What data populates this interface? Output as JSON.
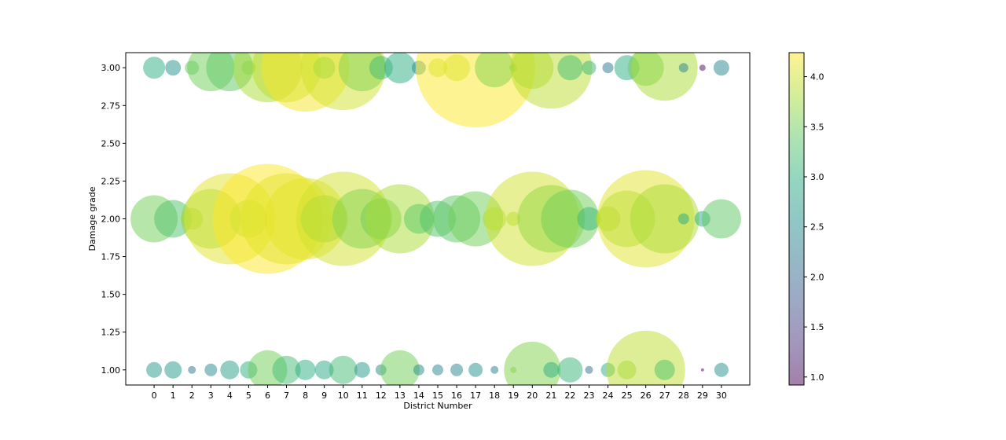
{
  "chart_data": {
    "type": "scatter",
    "variant": "bubble",
    "title": "",
    "xlabel": "District Number",
    "ylabel": "Damage grade",
    "x_ticks": [
      0,
      1,
      2,
      3,
      4,
      5,
      6,
      7,
      8,
      9,
      10,
      11,
      12,
      13,
      14,
      15,
      16,
      17,
      18,
      19,
      20,
      21,
      22,
      23,
      24,
      25,
      26,
      27,
      28,
      29,
      30
    ],
    "y_ticks": [
      "1.00",
      "1.25",
      "1.50",
      "1.75",
      "2.00",
      "2.25",
      "2.50",
      "2.75",
      "3.00"
    ],
    "xlim": [
      -1.5,
      31.5
    ],
    "ylim": [
      0.9,
      3.1
    ],
    "colorbar": {
      "colormap": "viridis",
      "alpha": 0.5,
      "range": [
        0.92,
        4.24
      ],
      "ticks": [
        "1.0",
        "1.5",
        "2.0",
        "2.5",
        "3.0",
        "3.5",
        "4.0"
      ],
      "tick_values": [
        1.0,
        1.5,
        2.0,
        2.5,
        3.0,
        3.5,
        4.0
      ]
    },
    "grid": false,
    "series": [
      {
        "y": 3,
        "points": [
          {
            "x": 0,
            "size": 14,
            "color_value": 3.0
          },
          {
            "x": 1,
            "size": 10,
            "color_value": 2.6
          },
          {
            "x": 2,
            "size": 9,
            "color_value": 3.4
          },
          {
            "x": 3,
            "size": 30,
            "color_value": 3.5
          },
          {
            "x": 4,
            "size": 30,
            "color_value": 3.4
          },
          {
            "x": 5,
            "size": 9,
            "color_value": 3.5
          },
          {
            "x": 6,
            "size": 44,
            "color_value": 3.8
          },
          {
            "x": 7,
            "size": 44,
            "color_value": 3.9
          },
          {
            "x": 8,
            "size": 56,
            "color_value": 4.2
          },
          {
            "x": 9,
            "size": 14,
            "color_value": 3.6
          },
          {
            "x": 10,
            "size": 54,
            "color_value": 4.0
          },
          {
            "x": 11,
            "size": 30,
            "color_value": 3.6
          },
          {
            "x": 12,
            "size": 15,
            "color_value": 3.2
          },
          {
            "x": 13,
            "size": 20,
            "color_value": 3.0
          },
          {
            "x": 14,
            "size": 9,
            "color_value": 2.5
          },
          {
            "x": 15,
            "size": 12,
            "color_value": 3.9
          },
          {
            "x": 16,
            "size": 17,
            "color_value": 3.9
          },
          {
            "x": 17,
            "size": 76,
            "color_value": 4.25
          },
          {
            "x": 18,
            "size": 25,
            "color_value": 3.6
          },
          {
            "x": 19,
            "size": 5,
            "color_value": 3.6
          },
          {
            "x": 20,
            "size": 27,
            "color_value": 3.8
          },
          {
            "x": 21,
            "size": 52,
            "color_value": 3.9
          },
          {
            "x": 22,
            "size": 16,
            "color_value": 3.2
          },
          {
            "x": 23,
            "size": 9,
            "color_value": 3.1
          },
          {
            "x": 24,
            "size": 7,
            "color_value": 2.2
          },
          {
            "x": 25,
            "size": 16,
            "color_value": 3.0
          },
          {
            "x": 26,
            "size": 23,
            "color_value": 3.5
          },
          {
            "x": 27,
            "size": 42,
            "color_value": 3.8
          },
          {
            "x": 28,
            "size": 6,
            "color_value": 2.4
          },
          {
            "x": 29,
            "size": 4,
            "color_value": 1.0
          },
          {
            "x": 30,
            "size": 10,
            "color_value": 2.4
          }
        ]
      },
      {
        "y": 2,
        "points": [
          {
            "x": 0,
            "size": 30,
            "color_value": 3.5
          },
          {
            "x": 1,
            "size": 24,
            "color_value": 3.3
          },
          {
            "x": 2,
            "size": 14,
            "color_value": 3.8
          },
          {
            "x": 3,
            "size": 38,
            "color_value": 3.7
          },
          {
            "x": 4,
            "size": 58,
            "color_value": 4.1
          },
          {
            "x": 5,
            "size": 24,
            "color_value": 3.8
          },
          {
            "x": 6,
            "size": 70,
            "color_value": 4.25
          },
          {
            "x": 7,
            "size": 58,
            "color_value": 4.1
          },
          {
            "x": 8,
            "size": 52,
            "color_value": 4.1
          },
          {
            "x": 9,
            "size": 30,
            "color_value": 3.7
          },
          {
            "x": 10,
            "size": 60,
            "color_value": 4.0
          },
          {
            "x": 11,
            "size": 38,
            "color_value": 3.6
          },
          {
            "x": 12,
            "size": 26,
            "color_value": 3.5
          },
          {
            "x": 13,
            "size": 44,
            "color_value": 3.8
          },
          {
            "x": 14,
            "size": 19,
            "color_value": 3.4
          },
          {
            "x": 15,
            "size": 23,
            "color_value": 3.3
          },
          {
            "x": 16,
            "size": 30,
            "color_value": 3.4
          },
          {
            "x": 17,
            "size": 35,
            "color_value": 3.5
          },
          {
            "x": 18,
            "size": 15,
            "color_value": 3.8
          },
          {
            "x": 19,
            "size": 9,
            "color_value": 3.8
          },
          {
            "x": 20,
            "size": 60,
            "color_value": 4.0
          },
          {
            "x": 21,
            "size": 43,
            "color_value": 3.7
          },
          {
            "x": 22,
            "size": 37,
            "color_value": 3.5
          },
          {
            "x": 23,
            "size": 15,
            "color_value": 3.1
          },
          {
            "x": 24,
            "size": 16,
            "color_value": 3.8
          },
          {
            "x": 25,
            "size": 36,
            "color_value": 3.7
          },
          {
            "x": 26,
            "size": 62,
            "color_value": 4.1
          },
          {
            "x": 27,
            "size": 44,
            "color_value": 3.8
          },
          {
            "x": 28,
            "size": 7,
            "color_value": 2.9
          },
          {
            "x": 29,
            "size": 10,
            "color_value": 3.0
          },
          {
            "x": 30,
            "size": 25,
            "color_value": 3.4
          }
        ]
      },
      {
        "y": 1,
        "points": [
          {
            "x": 0,
            "size": 10,
            "color_value": 2.7
          },
          {
            "x": 1,
            "size": 11,
            "color_value": 2.7
          },
          {
            "x": 2,
            "size": 5,
            "color_value": 2.2
          },
          {
            "x": 3,
            "size": 8,
            "color_value": 2.5
          },
          {
            "x": 4,
            "size": 12,
            "color_value": 2.8
          },
          {
            "x": 5,
            "size": 11,
            "color_value": 3.0
          },
          {
            "x": 6,
            "size": 25,
            "color_value": 3.5
          },
          {
            "x": 7,
            "size": 18,
            "color_value": 3.2
          },
          {
            "x": 8,
            "size": 13,
            "color_value": 3.0
          },
          {
            "x": 9,
            "size": 12,
            "color_value": 2.9
          },
          {
            "x": 10,
            "size": 18,
            "color_value": 3.2
          },
          {
            "x": 11,
            "size": 10,
            "color_value": 2.7
          },
          {
            "x": 12,
            "size": 7,
            "color_value": 2.5
          },
          {
            "x": 13,
            "size": 25,
            "color_value": 3.5
          },
          {
            "x": 14,
            "size": 7,
            "color_value": 2.5
          },
          {
            "x": 15,
            "size": 7,
            "color_value": 2.4
          },
          {
            "x": 16,
            "size": 8,
            "color_value": 2.4
          },
          {
            "x": 17,
            "size": 9,
            "color_value": 2.6
          },
          {
            "x": 18,
            "size": 5,
            "color_value": 2.3
          },
          {
            "x": 19,
            "size": 4,
            "color_value": 3.6
          },
          {
            "x": 20,
            "size": 36,
            "color_value": 3.6
          },
          {
            "x": 21,
            "size": 10,
            "color_value": 3.0
          },
          {
            "x": 22,
            "size": 16,
            "color_value": 3.1
          },
          {
            "x": 23,
            "size": 5,
            "color_value": 2.1
          },
          {
            "x": 24,
            "size": 9,
            "color_value": 3.0
          },
          {
            "x": 25,
            "size": 12,
            "color_value": 3.7
          },
          {
            "x": 26,
            "size": 50,
            "color_value": 3.9
          },
          {
            "x": 27,
            "size": 13,
            "color_value": 3.3
          },
          {
            "x": 28,
            "size": 0,
            "color_value": 2.5
          },
          {
            "x": 29,
            "size": 2,
            "color_value": 0.9
          },
          {
            "x": 30,
            "size": 9,
            "color_value": 2.6
          }
        ]
      }
    ]
  }
}
